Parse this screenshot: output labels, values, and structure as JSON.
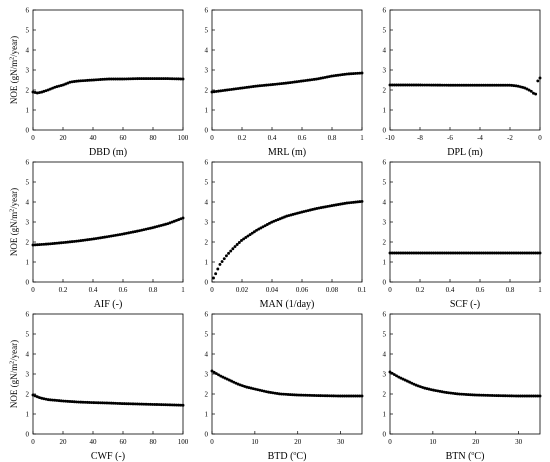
{
  "figure": {
    "ylabel_main": "NOE (gN/m",
    "ylabel_sup": "2",
    "ylabel_tail": "/year)",
    "series_color": "#000000"
  },
  "chart_data": [
    {
      "type": "scatter",
      "xlabel": "DBD (m)",
      "xlim": [
        0,
        100
      ],
      "ylim": [
        0,
        6
      ],
      "xticks": [
        0,
        20,
        40,
        60,
        80,
        100
      ],
      "yticks": [
        0,
        1,
        2,
        3,
        4,
        5,
        6
      ],
      "x": [
        0,
        3,
        6,
        10,
        15,
        20,
        25,
        30,
        40,
        50,
        60,
        70,
        80,
        90,
        100
      ],
      "y": [
        1.9,
        1.85,
        1.9,
        2.0,
        2.15,
        2.25,
        2.4,
        2.45,
        2.5,
        2.55,
        2.55,
        2.57,
        2.57,
        2.57,
        2.55
      ]
    },
    {
      "type": "scatter",
      "xlabel": "MRL (m)",
      "xlim": [
        0,
        1
      ],
      "ylim": [
        0,
        6
      ],
      "xticks": [
        0,
        0.2,
        0.4,
        0.6,
        0.8,
        1
      ],
      "yticks": [
        0,
        1,
        2,
        3,
        4,
        5,
        6
      ],
      "x": [
        0,
        0.1,
        0.2,
        0.3,
        0.4,
        0.5,
        0.6,
        0.7,
        0.8,
        0.9,
        1
      ],
      "y": [
        1.9,
        2.0,
        2.1,
        2.2,
        2.27,
        2.35,
        2.45,
        2.55,
        2.7,
        2.8,
        2.85
      ]
    },
    {
      "type": "scatter",
      "xlabel": "DPL (m)",
      "xlim": [
        -10,
        0
      ],
      "ylim": [
        0,
        6
      ],
      "xticks": [
        -10,
        -8,
        -6,
        -4,
        -2,
        0
      ],
      "yticks": [
        0,
        1,
        2,
        3,
        4,
        5,
        6
      ],
      "x": [
        -10,
        -8,
        -6,
        -4,
        -2,
        -1.5,
        -1,
        -0.6,
        -0.3,
        -0.15,
        0
      ],
      "y": [
        2.25,
        2.25,
        2.24,
        2.24,
        2.24,
        2.2,
        2.1,
        1.95,
        1.75,
        2.45,
        2.6
      ]
    },
    {
      "type": "scatter",
      "xlabel": "AIF (-)",
      "xlim": [
        0,
        1
      ],
      "ylim": [
        0,
        6
      ],
      "xticks": [
        0,
        0.2,
        0.4,
        0.6,
        0.8,
        1
      ],
      "yticks": [
        0,
        1,
        2,
        3,
        4,
        5,
        6
      ],
      "x": [
        0,
        0.1,
        0.2,
        0.3,
        0.4,
        0.5,
        0.6,
        0.7,
        0.8,
        0.9,
        1
      ],
      "y": [
        1.85,
        1.9,
        1.97,
        2.05,
        2.15,
        2.27,
        2.4,
        2.55,
        2.72,
        2.92,
        3.2
      ]
    },
    {
      "type": "scatter",
      "xlabel": "MAN (1/day)",
      "xlim": [
        0,
        0.1
      ],
      "ylim": [
        0,
        6
      ],
      "xticks": [
        0,
        0.02,
        0.04,
        0.06,
        0.08,
        0.1
      ],
      "yticks": [
        0,
        1,
        2,
        3,
        4,
        5,
        6
      ],
      "x": [
        0.001,
        0.003,
        0.005,
        0.01,
        0.015,
        0.02,
        0.03,
        0.04,
        0.05,
        0.06,
        0.07,
        0.08,
        0.09,
        0.1
      ],
      "y": [
        0.2,
        0.5,
        0.85,
        1.35,
        1.75,
        2.1,
        2.6,
        3.0,
        3.3,
        3.5,
        3.68,
        3.82,
        3.95,
        4.03
      ]
    },
    {
      "type": "scatter",
      "xlabel": "SCF (-)",
      "xlim": [
        0,
        1
      ],
      "ylim": [
        0,
        6
      ],
      "xticks": [
        0,
        0.2,
        0.4,
        0.6,
        0.8,
        1
      ],
      "yticks": [
        0,
        1,
        2,
        3,
        4,
        5,
        6
      ],
      "x": [
        0,
        0.1,
        0.2,
        0.3,
        0.4,
        0.5,
        0.6,
        0.7,
        0.8,
        0.9,
        1
      ],
      "y": [
        1.45,
        1.45,
        1.45,
        1.45,
        1.45,
        1.45,
        1.45,
        1.45,
        1.45,
        1.45,
        1.45
      ]
    },
    {
      "type": "scatter",
      "xlabel": "CWF (-)",
      "xlim": [
        0,
        100
      ],
      "ylim": [
        0,
        6
      ],
      "xticks": [
        0,
        20,
        40,
        60,
        80,
        100
      ],
      "yticks": [
        0,
        1,
        2,
        3,
        4,
        5,
        6
      ],
      "x": [
        0,
        5,
        10,
        20,
        30,
        40,
        50,
        60,
        70,
        80,
        90,
        100
      ],
      "y": [
        1.95,
        1.8,
        1.72,
        1.65,
        1.6,
        1.57,
        1.55,
        1.52,
        1.5,
        1.48,
        1.46,
        1.44
      ]
    },
    {
      "type": "scatter",
      "xlabel": "BTD (",
      "xlabel_sup": "o",
      "xlabel_tail": "C)",
      "xlim": [
        0,
        35
      ],
      "ylim": [
        0,
        6
      ],
      "xticks": [
        0,
        10,
        20,
        30
      ],
      "yticks": [
        0,
        1,
        2,
        3,
        4,
        5,
        6
      ],
      "x": [
        0,
        2,
        4,
        6,
        8,
        10,
        13,
        16,
        20,
        25,
        30,
        35
      ],
      "y": [
        3.15,
        2.9,
        2.7,
        2.5,
        2.35,
        2.25,
        2.1,
        2.0,
        1.95,
        1.92,
        1.9,
        1.9
      ]
    },
    {
      "type": "scatter",
      "xlabel": "BTN (",
      "xlabel_sup": "o",
      "xlabel_tail": "C)",
      "xlim": [
        0,
        35
      ],
      "ylim": [
        0,
        6
      ],
      "xticks": [
        0,
        10,
        20,
        30
      ],
      "yticks": [
        0,
        1,
        2,
        3,
        4,
        5,
        6
      ],
      "x": [
        0,
        2,
        4,
        6,
        8,
        10,
        13,
        16,
        20,
        25,
        30,
        35
      ],
      "y": [
        3.1,
        2.85,
        2.65,
        2.45,
        2.3,
        2.2,
        2.08,
        2.0,
        1.95,
        1.92,
        1.9,
        1.9
      ]
    }
  ]
}
